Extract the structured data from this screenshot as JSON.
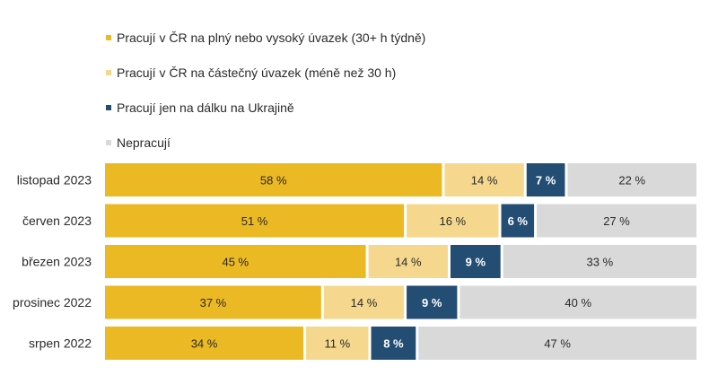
{
  "chart_data": {
    "type": "bar",
    "orientation": "horizontal",
    "stacked": true,
    "normalized": true,
    "categories": [
      "listopad 2023",
      "červen 2023",
      "březen 2023",
      "prosinec 2022",
      "srpen 2022"
    ],
    "series": [
      {
        "name": "Pracují v ČR na plný nebo vysoký úvazek (30+ h týdně)",
        "color": "#ebb923",
        "label_color": "#2a2a2a",
        "values": [
          58,
          51,
          45,
          37,
          34
        ]
      },
      {
        "name": "Pracují v ČR na částečný úvazek (méně než 30 h)",
        "color": "#f5d88e",
        "label_color": "#2a2a2a",
        "values": [
          14,
          16,
          14,
          14,
          11
        ]
      },
      {
        "name": "Pracují jen na dálku na Ukrajině",
        "color": "#244d73",
        "label_color": "#ffffff",
        "values": [
          7,
          6,
          9,
          9,
          8
        ]
      },
      {
        "name": "Nepracují",
        "color": "#d9d9d9",
        "label_color": "#2a2a2a",
        "values": [
          22,
          27,
          33,
          40,
          47
        ]
      }
    ],
    "value_suffix": " %",
    "legend_position": "top",
    "grid": false
  }
}
